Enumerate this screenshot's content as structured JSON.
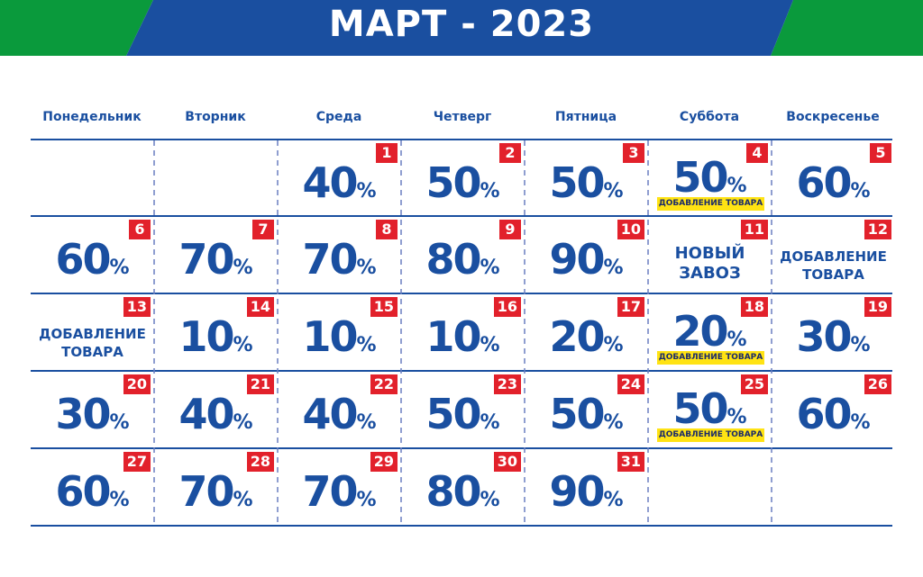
{
  "header": {
    "title": "МАРТ - 2023",
    "colors": {
      "green": "#0a9a3c",
      "blue": "#1a4fa0"
    }
  },
  "weekdays": [
    "Понедельник",
    "Вторник",
    "Среда",
    "Четверг",
    "Пятница",
    "Суббота",
    "Воскресенье"
  ],
  "percent_sign": "%",
  "add_goods_tag": "ДОБАВЛЕНИЕ ТОВАРА",
  "colors": {
    "day_badge": "#e2212b",
    "tag_bg": "#ffe313",
    "text": "#1a4fa0"
  },
  "days": [
    {
      "day": "1",
      "discount": "40",
      "tag": ""
    },
    {
      "day": "2",
      "discount": "50",
      "tag": ""
    },
    {
      "day": "3",
      "discount": "50",
      "tag": ""
    },
    {
      "day": "4",
      "discount": "50",
      "tag": "ДОБАВЛЕНИЕ ТОВАРА"
    },
    {
      "day": "5",
      "discount": "60",
      "tag": ""
    },
    {
      "day": "6",
      "discount": "60",
      "tag": ""
    },
    {
      "day": "7",
      "discount": "70",
      "tag": ""
    },
    {
      "day": "8",
      "discount": "70",
      "tag": ""
    },
    {
      "day": "9",
      "discount": "80",
      "tag": ""
    },
    {
      "day": "10",
      "discount": "90",
      "tag": ""
    },
    {
      "day": "11",
      "discount": "",
      "note": "НОВЫЙ ЗАВОЗ"
    },
    {
      "day": "12",
      "discount": "",
      "note": "ДОБАВЛЕНИЕ ТОВАРА"
    },
    {
      "day": "13",
      "discount": "",
      "note": "ДОБАВЛЕНИЕ ТОВАРА"
    },
    {
      "day": "14",
      "discount": "10",
      "tag": ""
    },
    {
      "day": "15",
      "discount": "10",
      "tag": ""
    },
    {
      "day": "16",
      "discount": "10",
      "tag": ""
    },
    {
      "day": "17",
      "discount": "20",
      "tag": ""
    },
    {
      "day": "18",
      "discount": "20",
      "tag": "ДОБАВЛЕНИЕ ТОВАРА"
    },
    {
      "day": "19",
      "discount": "30",
      "tag": ""
    },
    {
      "day": "20",
      "discount": "30",
      "tag": ""
    },
    {
      "day": "21",
      "discount": "40",
      "tag": ""
    },
    {
      "day": "22",
      "discount": "40",
      "tag": ""
    },
    {
      "day": "23",
      "discount": "50",
      "tag": ""
    },
    {
      "day": "24",
      "discount": "50",
      "tag": ""
    },
    {
      "day": "25",
      "discount": "50",
      "tag": "ДОБАВЛЕНИЕ ТОВАРА"
    },
    {
      "day": "26",
      "discount": "60",
      "tag": ""
    },
    {
      "day": "27",
      "discount": "60",
      "tag": ""
    },
    {
      "day": "28",
      "discount": "70",
      "tag": ""
    },
    {
      "day": "29",
      "discount": "70",
      "tag": ""
    },
    {
      "day": "30",
      "discount": "80",
      "tag": ""
    },
    {
      "day": "31",
      "discount": "90",
      "tag": ""
    }
  ]
}
